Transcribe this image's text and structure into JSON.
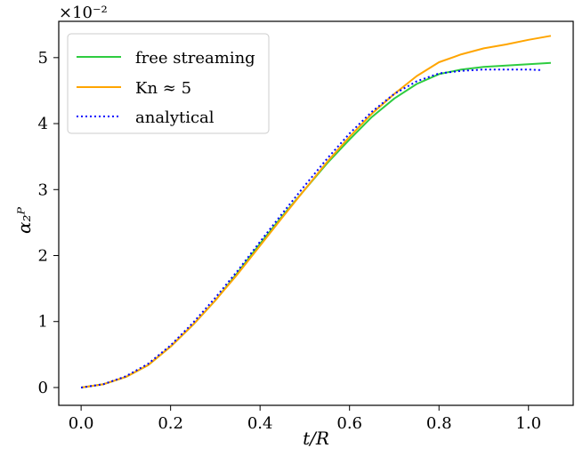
{
  "chart_data": {
    "type": "line",
    "title": "",
    "xlabel": "t/R",
    "ylabel": "α₂ᴾ",
    "y_scale_label": "×10⁻²",
    "xlim": [
      -0.05,
      1.1
    ],
    "ylim": [
      -0.27,
      5.55
    ],
    "x_ticks": [
      0.0,
      0.2,
      0.4,
      0.6,
      0.8,
      1.0
    ],
    "x_tick_labels": [
      "0.0",
      "0.2",
      "0.4",
      "0.6",
      "0.8",
      "1.0"
    ],
    "y_ticks": [
      0,
      1,
      2,
      3,
      4,
      5
    ],
    "y_tick_labels": [
      "0",
      "1",
      "2",
      "3",
      "4",
      "5"
    ],
    "grid": false,
    "legend_position": "top-left",
    "series": [
      {
        "name": "free streaming",
        "color": "#2ecc40",
        "style": "solid",
        "x": [
          0.0,
          0.05,
          0.1,
          0.15,
          0.2,
          0.25,
          0.3,
          0.35,
          0.4,
          0.45,
          0.5,
          0.55,
          0.6,
          0.65,
          0.7,
          0.75,
          0.8,
          0.85,
          0.9,
          0.95,
          1.0,
          1.05
        ],
        "y": [
          0.0,
          0.05,
          0.16,
          0.34,
          0.62,
          0.95,
          1.32,
          1.74,
          2.18,
          2.6,
          3.0,
          3.4,
          3.76,
          4.1,
          4.38,
          4.6,
          4.75,
          4.82,
          4.86,
          4.88,
          4.9,
          4.92
        ]
      },
      {
        "name": "Kn ≈ 5",
        "color": "#ffa500",
        "style": "solid",
        "x": [
          0.0,
          0.05,
          0.1,
          0.15,
          0.2,
          0.25,
          0.3,
          0.35,
          0.4,
          0.45,
          0.5,
          0.55,
          0.6,
          0.65,
          0.7,
          0.75,
          0.8,
          0.85,
          0.9,
          0.95,
          1.0,
          1.05
        ],
        "y": [
          0.0,
          0.05,
          0.16,
          0.34,
          0.62,
          0.95,
          1.32,
          1.72,
          2.15,
          2.58,
          3.0,
          3.42,
          3.8,
          4.15,
          4.45,
          4.72,
          4.93,
          5.05,
          5.14,
          5.2,
          5.27,
          5.33
        ]
      },
      {
        "name": "analytical",
        "color": "#0000ff",
        "style": "dotted",
        "x": [
          0.0,
          0.05,
          0.1,
          0.15,
          0.2,
          0.25,
          0.3,
          0.35,
          0.4,
          0.45,
          0.5,
          0.55,
          0.6,
          0.65,
          0.7,
          0.75,
          0.8,
          0.85,
          0.9,
          0.95,
          1.0,
          1.03
        ],
        "y": [
          0.0,
          0.05,
          0.17,
          0.36,
          0.64,
          0.98,
          1.36,
          1.77,
          2.21,
          2.64,
          3.06,
          3.47,
          3.85,
          4.18,
          4.45,
          4.64,
          4.76,
          4.8,
          4.82,
          4.82,
          4.82,
          4.81
        ]
      }
    ]
  }
}
